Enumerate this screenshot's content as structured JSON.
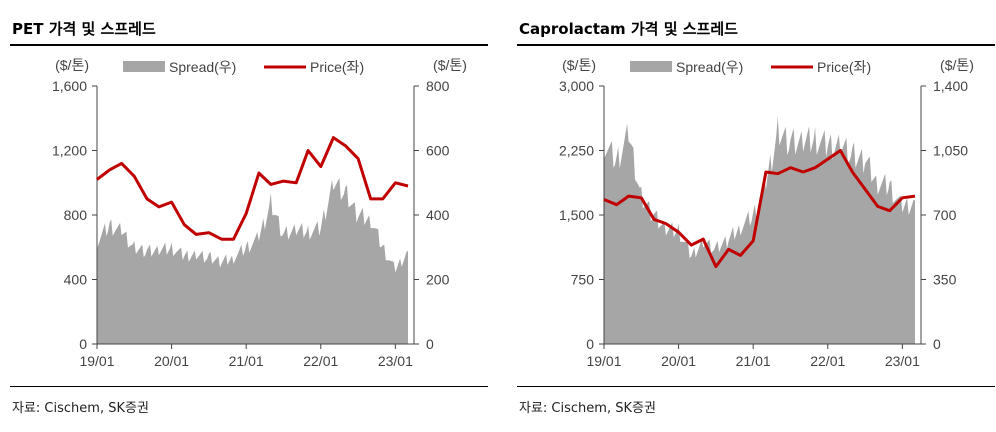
{
  "panels": [
    {
      "title": "PET 가격 및 스프레드",
      "source": "자료: Cischem, SK증권"
    },
    {
      "title": "Caprolactam 가격 및 스프레드",
      "source": "자료: Cischem, SK증권"
    }
  ],
  "colors": {
    "spread": "#a6a6a6",
    "price": "#c00000",
    "axis": "#444444"
  },
  "chart_data": [
    {
      "type": "area",
      "left_unit": "($/톤)",
      "right_unit": "($/톤)",
      "x_tick_labels": [
        "19/01",
        "20/01",
        "21/01",
        "22/01",
        "23/01"
      ],
      "x": [
        2019.0,
        2019.17,
        2019.33,
        2019.5,
        2019.67,
        2019.83,
        2020.0,
        2020.17,
        2020.33,
        2020.5,
        2020.67,
        2020.83,
        2021.0,
        2021.17,
        2021.33,
        2021.5,
        2021.67,
        2021.83,
        2022.0,
        2022.17,
        2022.33,
        2022.5,
        2022.67,
        2022.83,
        2023.0,
        2023.17
      ],
      "y_left": {
        "ticks": [
          0,
          400,
          800,
          1200,
          1600
        ],
        "tick_labels": [
          "0",
          "400",
          "800",
          "1,200",
          "1,600"
        ],
        "lim": [
          0,
          1600
        ]
      },
      "y_right": {
        "ticks": [
          0,
          200,
          400,
          600,
          800
        ],
        "tick_labels": [
          "0",
          "200",
          "400",
          "600",
          "800"
        ],
        "lim": [
          0,
          800
        ]
      },
      "series": [
        {
          "name": "Spread(우)",
          "kind": "area",
          "axis": "right",
          "values": [
            320,
            370,
            350,
            300,
            290,
            290,
            300,
            275,
            280,
            270,
            255,
            270,
            300,
            330,
            440,
            340,
            355,
            350,
            360,
            510,
            470,
            400,
            390,
            300,
            230,
            290
          ]
        },
        {
          "name": "Price(좌)",
          "kind": "line",
          "axis": "left",
          "values": [
            1020,
            1080,
            1120,
            1040,
            900,
            850,
            880,
            740,
            680,
            690,
            650,
            650,
            810,
            1060,
            990,
            1010,
            1000,
            1200,
            1100,
            1280,
            1230,
            1150,
            900,
            900,
            1000,
            980
          ]
        }
      ]
    },
    {
      "type": "area",
      "left_unit": "($/톤)",
      "right_unit": "($/톤)",
      "x_tick_labels": [
        "19/01",
        "20/01",
        "21/01",
        "22/01",
        "23/01"
      ],
      "x": [
        2019.0,
        2019.17,
        2019.33,
        2019.5,
        2019.67,
        2019.83,
        2020.0,
        2020.17,
        2020.33,
        2020.5,
        2020.67,
        2020.83,
        2021.0,
        2021.17,
        2021.33,
        2021.5,
        2021.67,
        2021.83,
        2022.0,
        2022.17,
        2022.33,
        2022.5,
        2022.67,
        2022.83,
        2023.0,
        2023.17
      ],
      "y_left": {
        "ticks": [
          0,
          750,
          1500,
          2250,
          3000
        ],
        "tick_labels": [
          "0",
          "750",
          "1,500",
          "2,250",
          "3,000"
        ],
        "lim": [
          0,
          3000
        ]
      },
      "y_right": {
        "ticks": [
          0,
          350,
          700,
          1050,
          1400
        ],
        "tick_labels": [
          "0",
          "350",
          "700",
          "1,050",
          "1,400"
        ],
        "lim": [
          0,
          1400
        ]
      },
      "series": [
        {
          "name": "Spread(우)",
          "kind": "area",
          "axis": "right",
          "values": [
            1090,
            1000,
            1140,
            800,
            700,
            620,
            620,
            480,
            560,
            520,
            570,
            640,
            700,
            870,
            1160,
            1100,
            1100,
            1120,
            1080,
            1100,
            1030,
            1000,
            880,
            860,
            740,
            780
          ]
        },
        {
          "name": "Price(좌)",
          "kind": "line",
          "axis": "left",
          "values": [
            1680,
            1620,
            1720,
            1700,
            1450,
            1400,
            1300,
            1150,
            1220,
            900,
            1100,
            1030,
            1200,
            2000,
            1980,
            2050,
            2000,
            2050,
            2150,
            2250,
            2000,
            1800,
            1600,
            1550,
            1700,
            1720
          ]
        }
      ]
    }
  ]
}
